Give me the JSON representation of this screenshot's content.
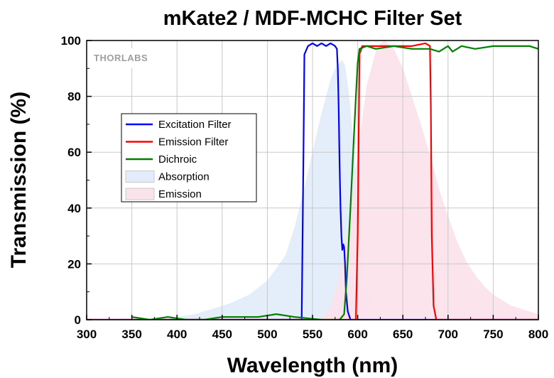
{
  "chart_data": {
    "type": "line",
    "title": "mKate2 / MDF-MCHC Filter Set",
    "xlabel": "Wavelength (nm)",
    "ylabel": "Transmission (%)",
    "xlim": [
      300,
      800
    ],
    "ylim": [
      0,
      100
    ],
    "x_ticks": [
      300,
      350,
      400,
      450,
      500,
      550,
      600,
      650,
      700,
      750,
      800
    ],
    "y_ticks": [
      0,
      20,
      40,
      60,
      80,
      100
    ],
    "grid": true,
    "legend_position": "center-left",
    "watermark": "THORLABS",
    "series": [
      {
        "name": "Absorption",
        "kind": "area",
        "color": "#e3ecfa",
        "points": [
          [
            385,
            0
          ],
          [
            400,
            1
          ],
          [
            420,
            2
          ],
          [
            440,
            4
          ],
          [
            460,
            6
          ],
          [
            480,
            9
          ],
          [
            500,
            14
          ],
          [
            520,
            23
          ],
          [
            530,
            33
          ],
          [
            540,
            46
          ],
          [
            550,
            60
          ],
          [
            560,
            74
          ],
          [
            565,
            80
          ],
          [
            570,
            86
          ],
          [
            575,
            90
          ],
          [
            580,
            92
          ],
          [
            583,
            93
          ],
          [
            586,
            91
          ],
          [
            590,
            82
          ],
          [
            595,
            65
          ],
          [
            600,
            42
          ],
          [
            605,
            25
          ],
          [
            610,
            12
          ],
          [
            615,
            6
          ],
          [
            620,
            3
          ],
          [
            630,
            1
          ],
          [
            640,
            0
          ]
        ]
      },
      {
        "name": "Emission",
        "kind": "area",
        "color": "#fbe3eb",
        "points": [
          [
            560,
            0
          ],
          [
            570,
            5
          ],
          [
            580,
            15
          ],
          [
            590,
            34
          ],
          [
            600,
            60
          ],
          [
            610,
            84
          ],
          [
            620,
            96
          ],
          [
            625,
            99
          ],
          [
            630,
            100
          ],
          [
            640,
            97
          ],
          [
            650,
            90
          ],
          [
            660,
            80
          ],
          [
            670,
            70
          ],
          [
            680,
            59
          ],
          [
            690,
            47
          ],
          [
            700,
            37
          ],
          [
            710,
            28
          ],
          [
            720,
            21
          ],
          [
            730,
            16
          ],
          [
            740,
            12
          ],
          [
            750,
            9
          ],
          [
            760,
            7
          ],
          [
            770,
            5
          ],
          [
            780,
            4
          ],
          [
            790,
            3
          ],
          [
            800,
            2
          ]
        ]
      },
      {
        "name": "Excitation Filter",
        "kind": "line",
        "color": "#0000ff",
        "points": [
          [
            300,
            0
          ],
          [
            538,
            0
          ],
          [
            540,
            60
          ],
          [
            541,
            95
          ],
          [
            545,
            98
          ],
          [
            550,
            99
          ],
          [
            555,
            98
          ],
          [
            560,
            99
          ],
          [
            565,
            98
          ],
          [
            570,
            99
          ],
          [
            575,
            98
          ],
          [
            577,
            97
          ],
          [
            578,
            90
          ],
          [
            579,
            75
          ],
          [
            580,
            55
          ],
          [
            581,
            40
          ],
          [
            582,
            30
          ],
          [
            583,
            25
          ],
          [
            584,
            27
          ],
          [
            585,
            26
          ],
          [
            586,
            20
          ],
          [
            587,
            10
          ],
          [
            589,
            3
          ],
          [
            592,
            0
          ],
          [
            800,
            0
          ]
        ]
      },
      {
        "name": "Emission Filter",
        "kind": "line",
        "color": "#ff0000",
        "points": [
          [
            300,
            0
          ],
          [
            598,
            0
          ],
          [
            600,
            30
          ],
          [
            602,
            95
          ],
          [
            605,
            98
          ],
          [
            620,
            98
          ],
          [
            640,
            98
          ],
          [
            660,
            98
          ],
          [
            675,
            99
          ],
          [
            680,
            98
          ],
          [
            681,
            75
          ],
          [
            682,
            30
          ],
          [
            684,
            5
          ],
          [
            687,
            0
          ],
          [
            800,
            0
          ]
        ]
      },
      {
        "name": "Dichroic",
        "kind": "line",
        "color": "#008000",
        "points": [
          [
            350,
            1
          ],
          [
            370,
            0
          ],
          [
            390,
            1
          ],
          [
            410,
            0
          ],
          [
            430,
            0
          ],
          [
            450,
            1
          ],
          [
            470,
            1
          ],
          [
            490,
            1
          ],
          [
            510,
            2
          ],
          [
            530,
            1
          ],
          [
            560,
            0
          ],
          [
            580,
            0
          ],
          [
            585,
            2
          ],
          [
            588,
            15
          ],
          [
            592,
            40
          ],
          [
            595,
            60
          ],
          [
            598,
            80
          ],
          [
            600,
            92
          ],
          [
            602,
            97
          ],
          [
            610,
            98
          ],
          [
            620,
            97
          ],
          [
            640,
            98
          ],
          [
            660,
            97
          ],
          [
            680,
            97
          ],
          [
            690,
            96
          ],
          [
            700,
            98
          ],
          [
            705,
            96
          ],
          [
            715,
            98
          ],
          [
            730,
            97
          ],
          [
            750,
            98
          ],
          [
            770,
            98
          ],
          [
            790,
            98
          ],
          [
            800,
            97
          ]
        ]
      }
    ],
    "legend": [
      {
        "label": "Excitation Filter",
        "kind": "line",
        "color": "#0000ff"
      },
      {
        "label": "Emission Filter",
        "kind": "line",
        "color": "#ff0000"
      },
      {
        "label": "Dichroic",
        "kind": "line",
        "color": "#008000"
      },
      {
        "label": "Absorption",
        "kind": "area",
        "color": "#e3ecfa"
      },
      {
        "label": "Emission",
        "kind": "area",
        "color": "#fbe3eb"
      }
    ]
  }
}
